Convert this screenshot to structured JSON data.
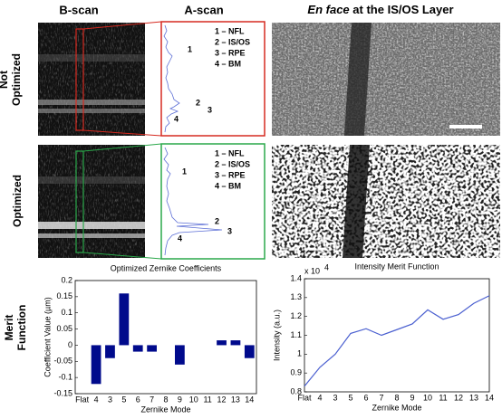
{
  "headers": {
    "bscan": "B-scan",
    "ascan": "A-scan",
    "enface_italic": "En face",
    "enface_rest": "at the IS/OS Layer"
  },
  "row_labels": [
    [
      "Not",
      "Optimized"
    ],
    [
      "Optimized"
    ],
    [
      "Merit",
      "Function"
    ]
  ],
  "ascan_legend": [
    "1 – NFL",
    "2 – IS/OS",
    "3 – RPE",
    "4 – BM"
  ],
  "peak_labels": [
    "1",
    "2",
    "3",
    "4"
  ],
  "chart_data": [
    {
      "type": "bar",
      "title": "Optimized Zernike Coefficients",
      "x_label": "Zernike Mode",
      "y_label": "Coefficient Value (µm)",
      "color": "#000a8c",
      "categories": [
        "Flat",
        "4",
        "3",
        "5",
        "6",
        "7",
        "8",
        "9",
        "10",
        "11",
        "12",
        "13",
        "14"
      ],
      "values": [
        null,
        -0.12,
        -0.04,
        0.16,
        -0.02,
        -0.02,
        0,
        -0.06,
        0,
        0,
        0.015,
        0.015,
        -0.04
      ],
      "ylim": [
        -0.15,
        0.2
      ],
      "yticks": [
        -0.15,
        -0.1,
        -0.05,
        0,
        0.05,
        0.1,
        0.15,
        0.2
      ]
    },
    {
      "type": "line",
      "title": "Intensity Merit Function",
      "x_label": "Zernike Mode",
      "y_label": "Intensity (a.u.)",
      "color": "#4a5fd0",
      "scale_label": "x 10",
      "scale_exponent": "4",
      "categories": [
        "Flat",
        "4",
        "3",
        "5",
        "6",
        "7",
        "8",
        "9",
        "10",
        "11",
        "12",
        "13",
        "14"
      ],
      "values": [
        0.83,
        0.93,
        1.0,
        1.11,
        1.135,
        1.1,
        1.13,
        1.16,
        1.235,
        1.185,
        1.21,
        1.27,
        1.31
      ],
      "ylim": [
        0.8,
        1.4
      ],
      "yticks": [
        0.8,
        0.9,
        1,
        1.1,
        1.2,
        1.3,
        1.4
      ]
    }
  ]
}
